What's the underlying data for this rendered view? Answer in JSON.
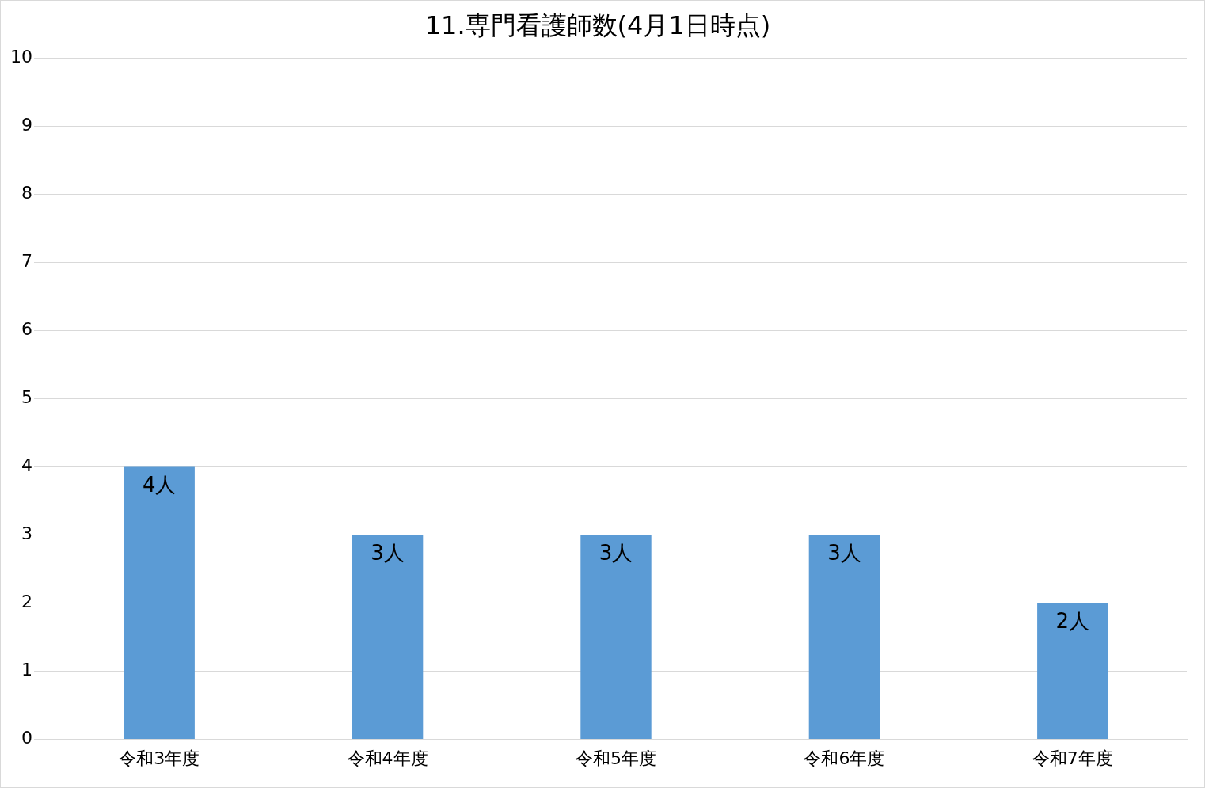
{
  "chart_data": {
    "type": "bar",
    "title": "11.専門看護師数(4月1日時点)",
    "categories": [
      "令和3年度",
      "令和4年度",
      "令和5年度",
      "令和6年度",
      "令和7年度"
    ],
    "values": [
      4,
      3,
      3,
      3,
      2
    ],
    "value_labels": [
      "4人",
      "3人",
      "3人",
      "3人",
      "2人"
    ],
    "color": "#5b9bd5",
    "ylim": [
      0,
      10
    ],
    "yticks": [
      0,
      1,
      2,
      3,
      4,
      5,
      6,
      7,
      8,
      9,
      10
    ],
    "grid": "y",
    "legend": false
  }
}
